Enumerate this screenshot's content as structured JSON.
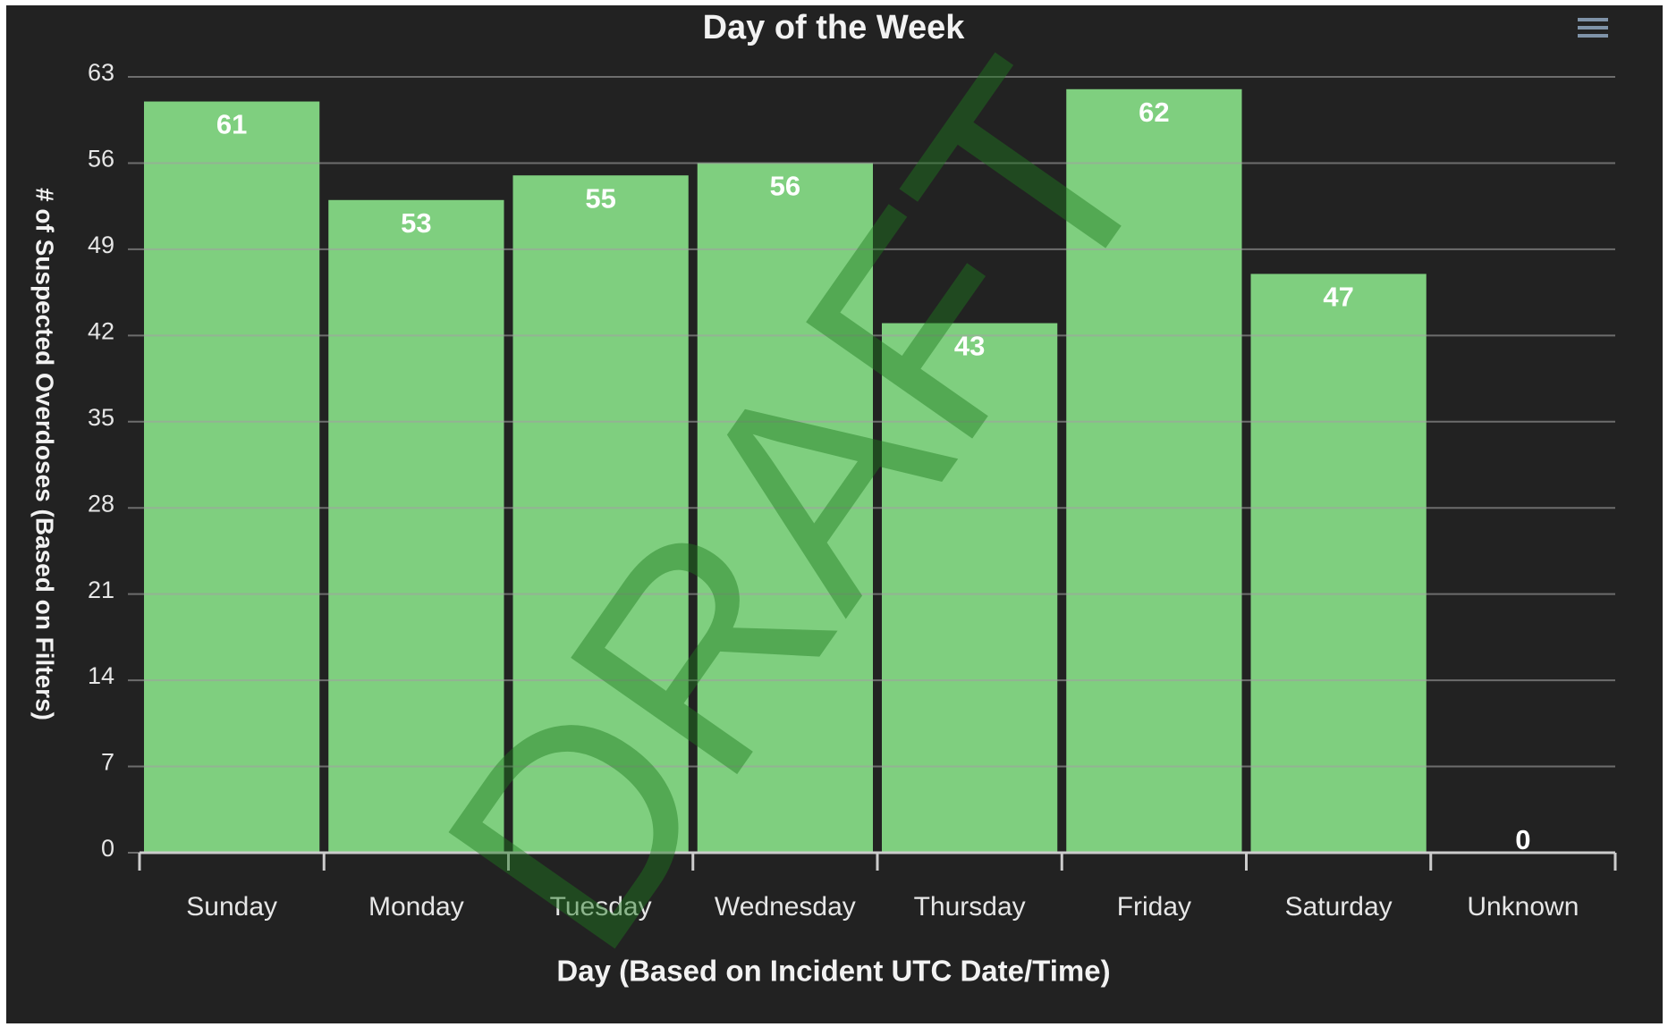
{
  "chart_data": {
    "type": "bar",
    "title": "Day of the Week",
    "x_label": "Day (Based on Incident UTC Date/Time)",
    "y_label": "# of Suspected Overdoses (Based on Filters)",
    "watermark": "DRAFT",
    "categories": [
      "Sunday",
      "Monday",
      "Tuesday",
      "Wednesday",
      "Thursday",
      "Friday",
      "Saturday",
      "Unknown"
    ],
    "values": [
      61,
      53,
      55,
      56,
      43,
      62,
      47,
      0
    ],
    "color": "#7fcf7f",
    "ylim": [
      0,
      63
    ],
    "yticks": [
      0,
      7,
      14,
      21,
      28,
      35,
      42,
      49,
      56,
      63
    ],
    "grid": true,
    "data_labels": true
  }
}
